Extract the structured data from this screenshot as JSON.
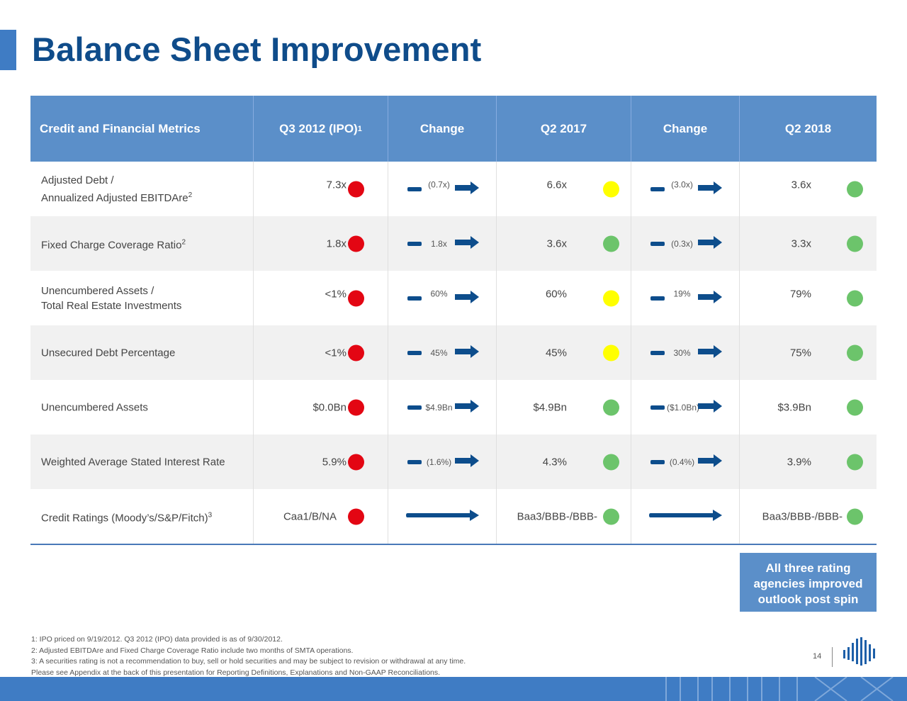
{
  "title": "Balance Sheet Improvement",
  "header": {
    "metrics": "Credit and Financial Metrics",
    "q3_2012": "Q3 2012 (IPO)",
    "q3_2012_sup": "1",
    "change1": "Change",
    "q2_2017": "Q2 2017",
    "change2": "Change",
    "q2_2018": "Q2 2018"
  },
  "rows": [
    {
      "label_line1": "Adjusted Debt /",
      "label_line2": "Annualized Adjusted EBITDAre",
      "label_sup": "2",
      "q3_2012": "7.3x",
      "q3_2012_status": "red",
      "change1": "(0.7x)",
      "q2_2017": "6.6x",
      "q2_2017_status": "yellow",
      "change2": "(3.0x)",
      "q2_2018": "3.6x",
      "q2_2018_status": "green"
    },
    {
      "label_line1": "Fixed Charge Coverage Ratio",
      "label_line2": "",
      "label_sup": "2",
      "q3_2012": "1.8x",
      "q3_2012_status": "red",
      "change1": "1.8x",
      "q2_2017": "3.6x",
      "q2_2017_status": "green",
      "change2": "(0.3x)",
      "q2_2018": "3.3x",
      "q2_2018_status": "green"
    },
    {
      "label_line1": "Unencumbered Assets /",
      "label_line2": "Total Real Estate Investments",
      "label_sup": "",
      "q3_2012": "<1%",
      "q3_2012_status": "red",
      "change1": "60%",
      "q2_2017": "60%",
      "q2_2017_status": "yellow",
      "change2": "19%",
      "q2_2018": "79%",
      "q2_2018_status": "green"
    },
    {
      "label_line1": "Unsecured Debt Percentage",
      "label_line2": "",
      "label_sup": "",
      "q3_2012": "<1%",
      "q3_2012_status": "red",
      "change1": "45%",
      "q2_2017": "45%",
      "q2_2017_status": "yellow",
      "change2": "30%",
      "q2_2018": "75%",
      "q2_2018_status": "green"
    },
    {
      "label_line1": "Unencumbered Assets",
      "label_line2": "",
      "label_sup": "",
      "q3_2012": "$0.0Bn",
      "q3_2012_status": "red",
      "change1": "$4.9Bn",
      "q2_2017": "$4.9Bn",
      "q2_2017_status": "green",
      "change2": "($1.0Bn)",
      "q2_2018": "$3.9Bn",
      "q2_2018_status": "green"
    },
    {
      "label_line1": "Weighted Average Stated Interest Rate",
      "label_line2": "",
      "label_sup": "",
      "q3_2012": "5.9%",
      "q3_2012_status": "red",
      "change1": "(1.6%)",
      "q2_2017": "4.3%",
      "q2_2017_status": "green",
      "change2": "(0.4%)",
      "q2_2018": "3.9%",
      "q2_2018_status": "green"
    },
    {
      "label_line1": "Credit Ratings (Moody’s/S&P/Fitch)",
      "label_line2": "",
      "label_sup": "3",
      "q3_2012": "Caa1/B/NA",
      "q3_2012_status": "red",
      "change1": "",
      "q2_2017": "Baa3/BBB-/BBB-",
      "q2_2017_status": "green",
      "change2": "",
      "q2_2018": "Baa3/BBB-/BBB-",
      "q2_2018_status": "green"
    }
  ],
  "callout": {
    "line1": "All three rating",
    "line2": "agencies improved",
    "line3": "outlook post spin"
  },
  "footnotes": {
    "f1": "1: IPO priced on 9/19/2012. Q3 2012 (IPO) data provided is as of 9/30/2012.",
    "f2": "2: Adjusted EBITDAre and Fixed Charge Coverage Ratio include two months of SMTA operations.",
    "f3": "3: A securities rating is not a recommendation to buy, sell or hold securities and may be subject to revision or withdrawal at any time.",
    "f4": "Please see Appendix at the back of this presentation for Reporting Definitions, Explanations and Non-GAAP Reconciliations."
  },
  "page_number": "14",
  "colors": {
    "red": "#e30613",
    "yellow": "#ffff00",
    "green": "#6cc46b",
    "header_blue": "#5b8fc9",
    "title_blue": "#0f4c8a",
    "arrow_blue": "#0d4d8c"
  }
}
